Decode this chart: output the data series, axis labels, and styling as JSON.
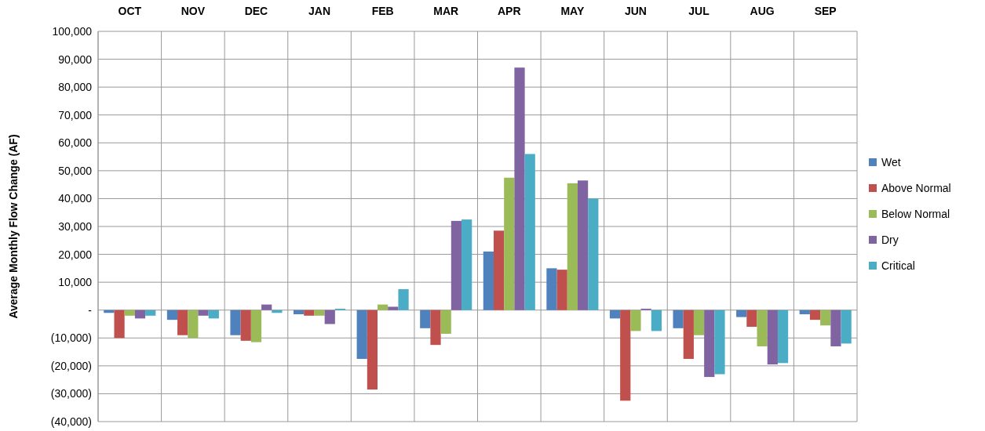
{
  "chart_data": {
    "type": "bar",
    "ylabel": "Average Monthly Flow Change (AF)",
    "categories": [
      "OCT",
      "NOV",
      "DEC",
      "JAN",
      "FEB",
      "MAR",
      "APR",
      "MAY",
      "JUN",
      "JUL",
      "AUG",
      "SEP"
    ],
    "series": [
      {
        "name": "Wet",
        "color": "#4f81bd",
        "values": [
          -1000,
          -3500,
          -9000,
          -1500,
          -17500,
          -6500,
          21000,
          15000,
          -3000,
          -6500,
          -2500,
          -1500
        ]
      },
      {
        "name": "Above Normal",
        "color": "#c0504d",
        "values": [
          -10000,
          -9000,
          -11000,
          -2000,
          -28500,
          -12500,
          28500,
          14500,
          -32500,
          -17500,
          -6000,
          -3500
        ]
      },
      {
        "name": "Below Normal",
        "color": "#9bbb59",
        "values": [
          -2000,
          -10000,
          -11500,
          -2000,
          2000,
          -8500,
          47500,
          45500,
          -7500,
          -9000,
          -13000,
          -5500
        ]
      },
      {
        "name": "Dry",
        "color": "#8064a2",
        "values": [
          -3000,
          -2000,
          2000,
          -5000,
          1200,
          32000,
          87000,
          46500,
          500,
          -24000,
          -19500,
          -13000
        ]
      },
      {
        "name": "Critical",
        "color": "#4bacc6",
        "values": [
          -2000,
          -3000,
          -1000,
          500,
          7500,
          32500,
          56000,
          40000,
          -7500,
          -23000,
          -19000,
          -12000
        ]
      }
    ],
    "ylim": [
      -40000,
      100000
    ],
    "yticks": [
      {
        "value": -40000,
        "label": "(40,000)"
      },
      {
        "value": -30000,
        "label": "(30,000)"
      },
      {
        "value": -20000,
        "label": "(20,000)"
      },
      {
        "value": -10000,
        "label": "(10,000)"
      },
      {
        "value": 0,
        "label": "-"
      },
      {
        "value": 10000,
        "label": "10,000"
      },
      {
        "value": 20000,
        "label": "20,000"
      },
      {
        "value": 30000,
        "label": "30,000"
      },
      {
        "value": 40000,
        "label": "40,000"
      },
      {
        "value": 50000,
        "label": "50,000"
      },
      {
        "value": 60000,
        "label": "60,000"
      },
      {
        "value": 70000,
        "label": "70,000"
      },
      {
        "value": 80000,
        "label": "80,000"
      },
      {
        "value": 90000,
        "label": "90,000"
      },
      {
        "value": 100000,
        "label": "100,000"
      }
    ],
    "grid": true,
    "legend": "right"
  }
}
